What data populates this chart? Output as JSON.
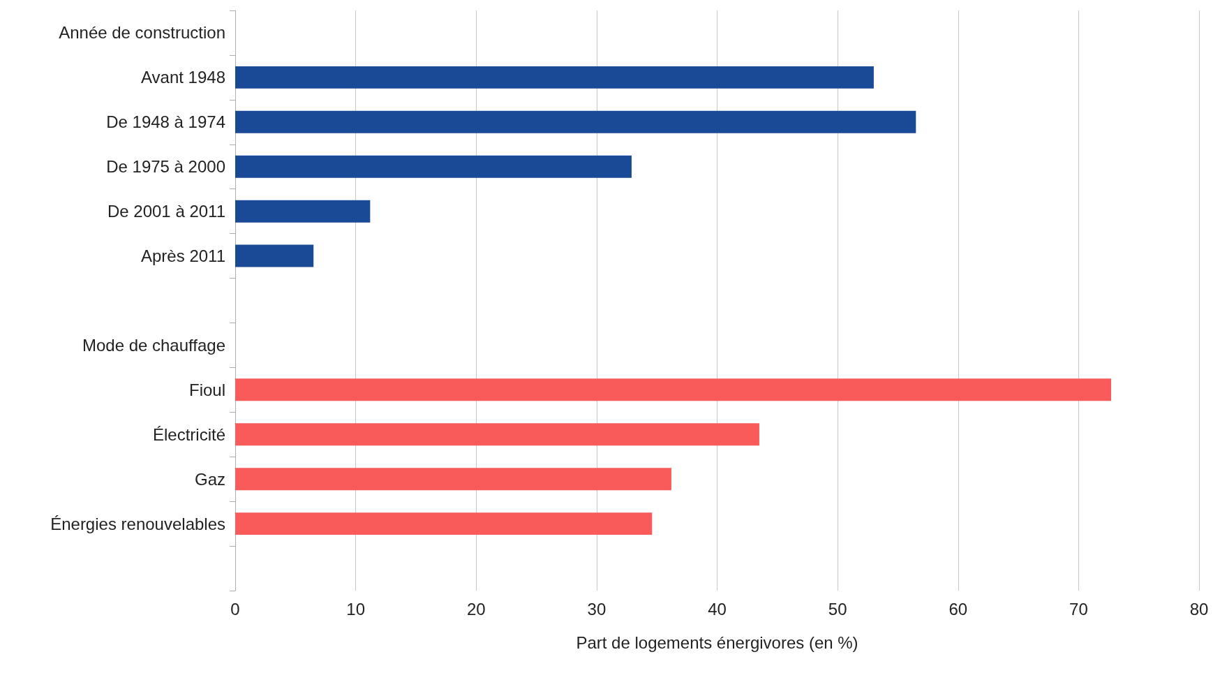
{
  "chart_data": {
    "type": "bar",
    "orientation": "horizontal",
    "xlabel": "Part de logements énergivores (en %)",
    "categories": [
      "Année de construction",
      "Avant 1948",
      "De 1948 à 1974",
      "De 1975 à 2000",
      "De 2001 à 2011",
      "Après 2011",
      null,
      "Mode de chauffage",
      "Fioul",
      "Électricité",
      "Gaz",
      "Énergies renouvelables",
      null
    ],
    "series": [
      {
        "color": "#1a4a96",
        "values": [
          null,
          53,
          56.5,
          32.9,
          11.2,
          6.5,
          null,
          null,
          null,
          null,
          null,
          null,
          null
        ]
      },
      {
        "color": "#f95a5a",
        "values": [
          null,
          null,
          null,
          null,
          null,
          null,
          null,
          null,
          72.7,
          43.5,
          36.2,
          34.6,
          null
        ]
      }
    ],
    "xlim": [
      0,
      80
    ],
    "xticks": [
      0,
      10,
      20,
      30,
      40,
      50,
      60,
      70,
      80
    ],
    "grid": "x"
  }
}
